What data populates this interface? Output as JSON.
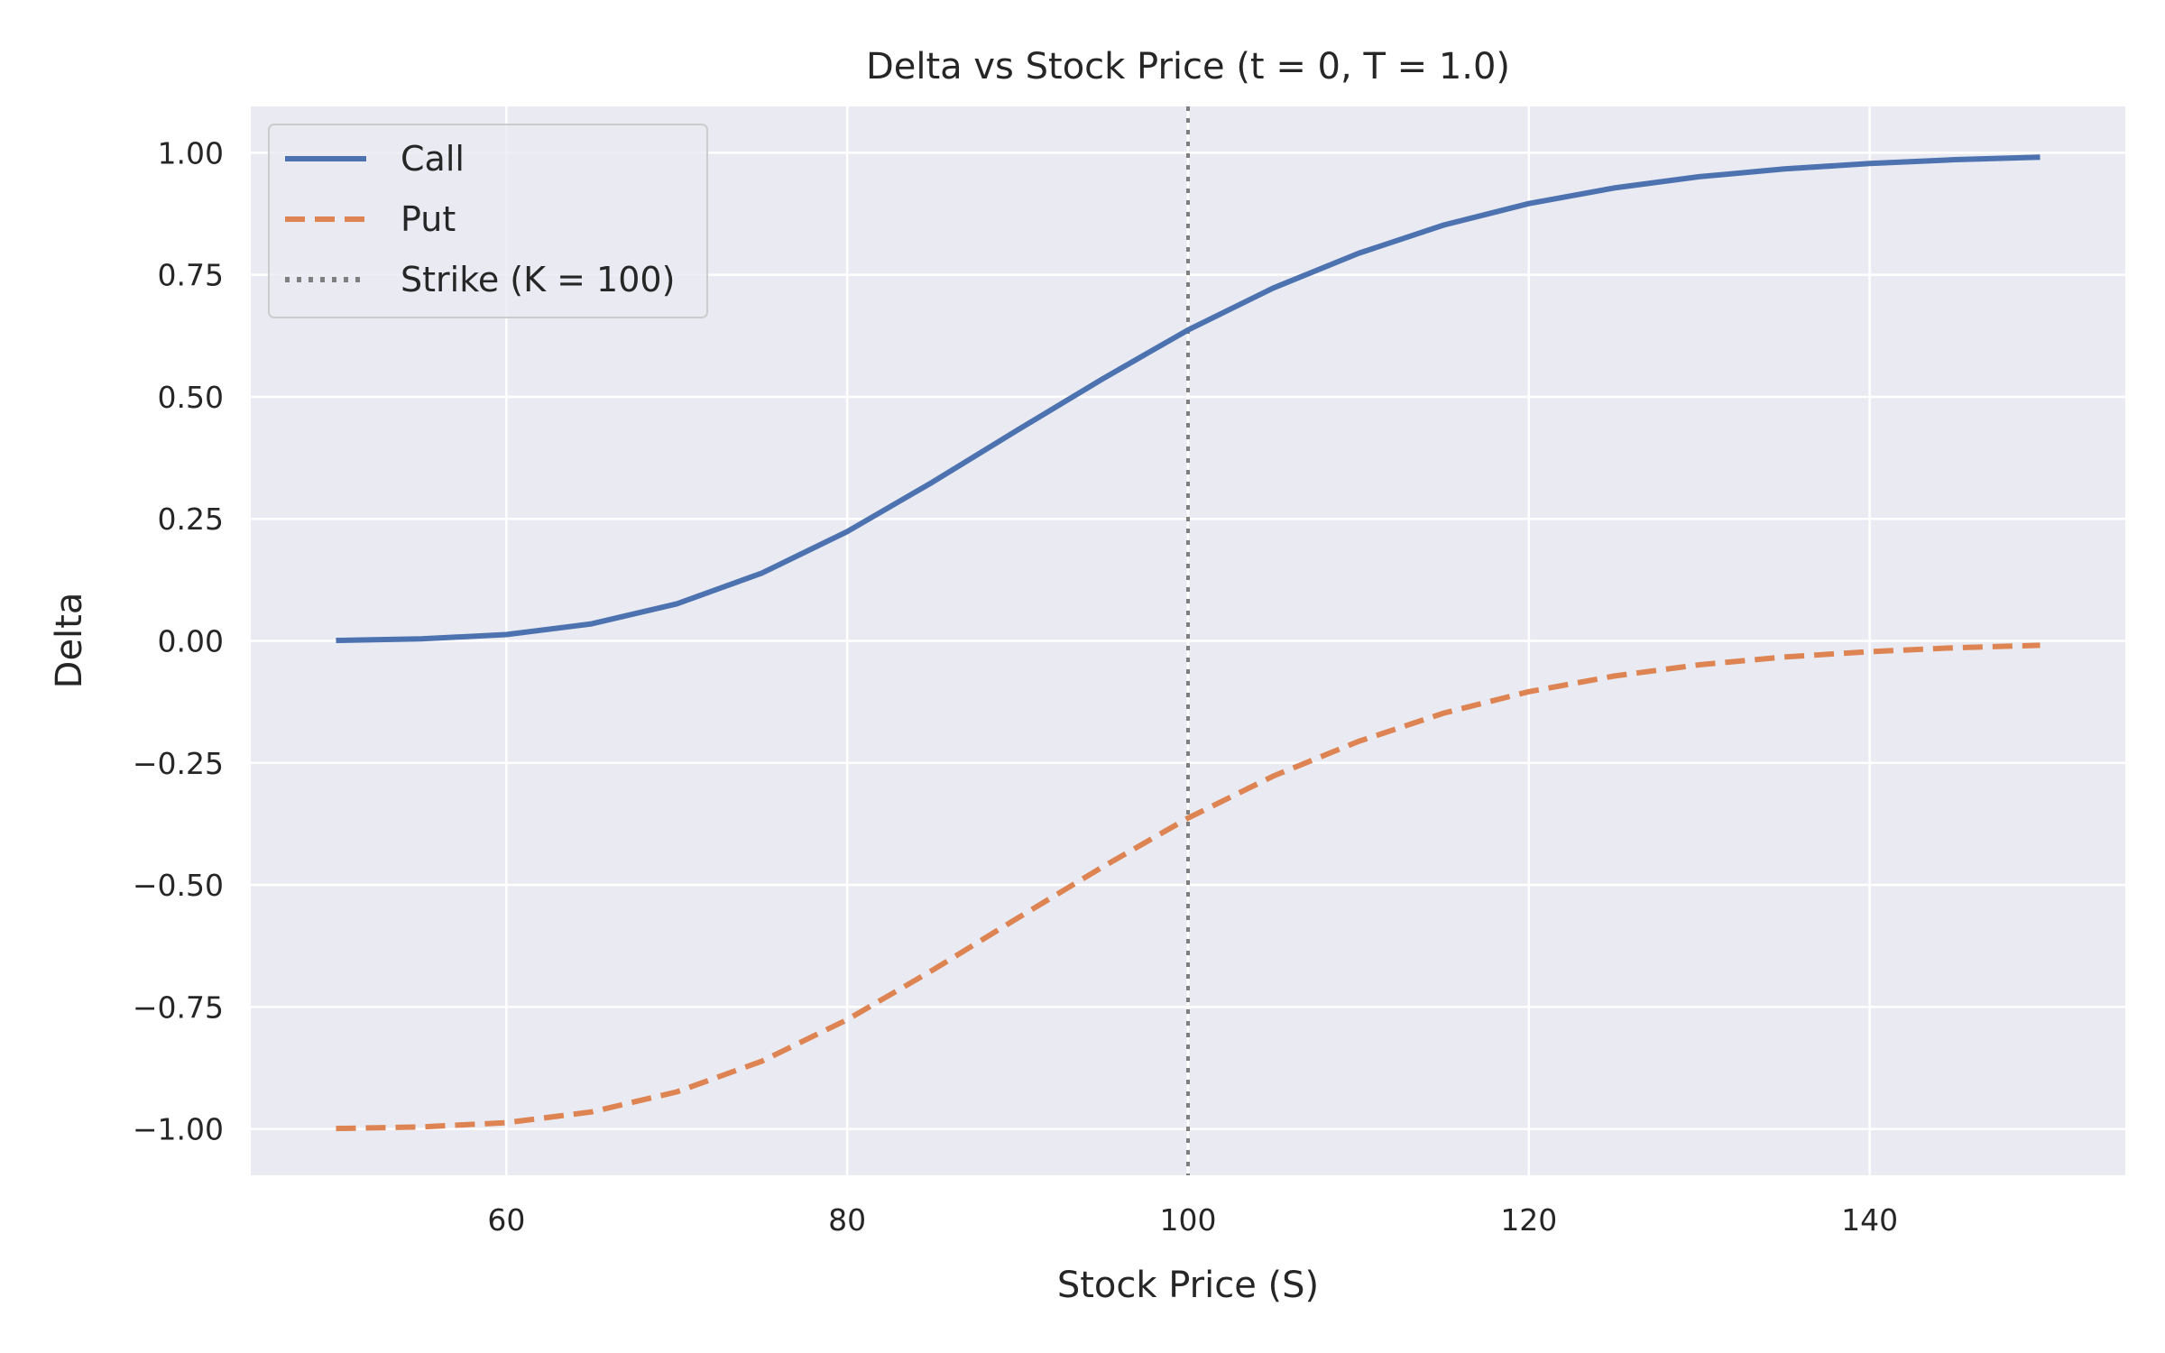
{
  "chart_data": {
    "type": "line",
    "title": "Delta vs Stock Price (t = 0, T = 1.0)",
    "xlabel": "Stock Price (S)",
    "ylabel": "Delta",
    "xlim": [
      45,
      155
    ],
    "ylim": [
      -1.095,
      1.095
    ],
    "xticks": [
      60,
      80,
      100,
      120,
      140
    ],
    "yticks": [
      1.0,
      0.75,
      0.5,
      0.25,
      0.0,
      -0.25,
      -0.5,
      -0.75,
      -1.0
    ],
    "xtick_labels": [
      "60",
      "80",
      "100",
      "120",
      "140"
    ],
    "ytick_labels": [
      "1.00",
      "0.75",
      "0.50",
      "0.25",
      "0.00",
      "−0.25",
      "−0.50",
      "−0.75",
      "−1.00"
    ],
    "grid": true,
    "legend_position": "top-left",
    "x": [
      50,
      55,
      60,
      65,
      70,
      75,
      80,
      85,
      90,
      95,
      100,
      105,
      110,
      115,
      120,
      125,
      130,
      135,
      140,
      145,
      150
    ],
    "series": [
      {
        "name": "Call",
        "color": "#4c72b0",
        "style": "solid",
        "values": [
          0.001,
          0.004,
          0.013,
          0.035,
          0.076,
          0.139,
          0.224,
          0.325,
          0.432,
          0.537,
          0.637,
          0.723,
          0.794,
          0.852,
          0.896,
          0.928,
          0.951,
          0.967,
          0.978,
          0.986,
          0.991
        ]
      },
      {
        "name": "Put",
        "color": "#dd8452",
        "style": "dashed",
        "values": [
          -0.999,
          -0.996,
          -0.987,
          -0.965,
          -0.924,
          -0.861,
          -0.776,
          -0.675,
          -0.568,
          -0.463,
          -0.363,
          -0.277,
          -0.206,
          -0.148,
          -0.104,
          -0.072,
          -0.049,
          -0.033,
          -0.022,
          -0.014,
          -0.009
        ]
      }
    ],
    "vlines": [
      {
        "name": "Strike (K = 100)",
        "x": 100,
        "color": "#7f7f7f",
        "style": "dotted"
      }
    ],
    "colors": {
      "plot_background": "#eaeaf2",
      "grid": "#ffffff",
      "text": "#262626"
    }
  }
}
